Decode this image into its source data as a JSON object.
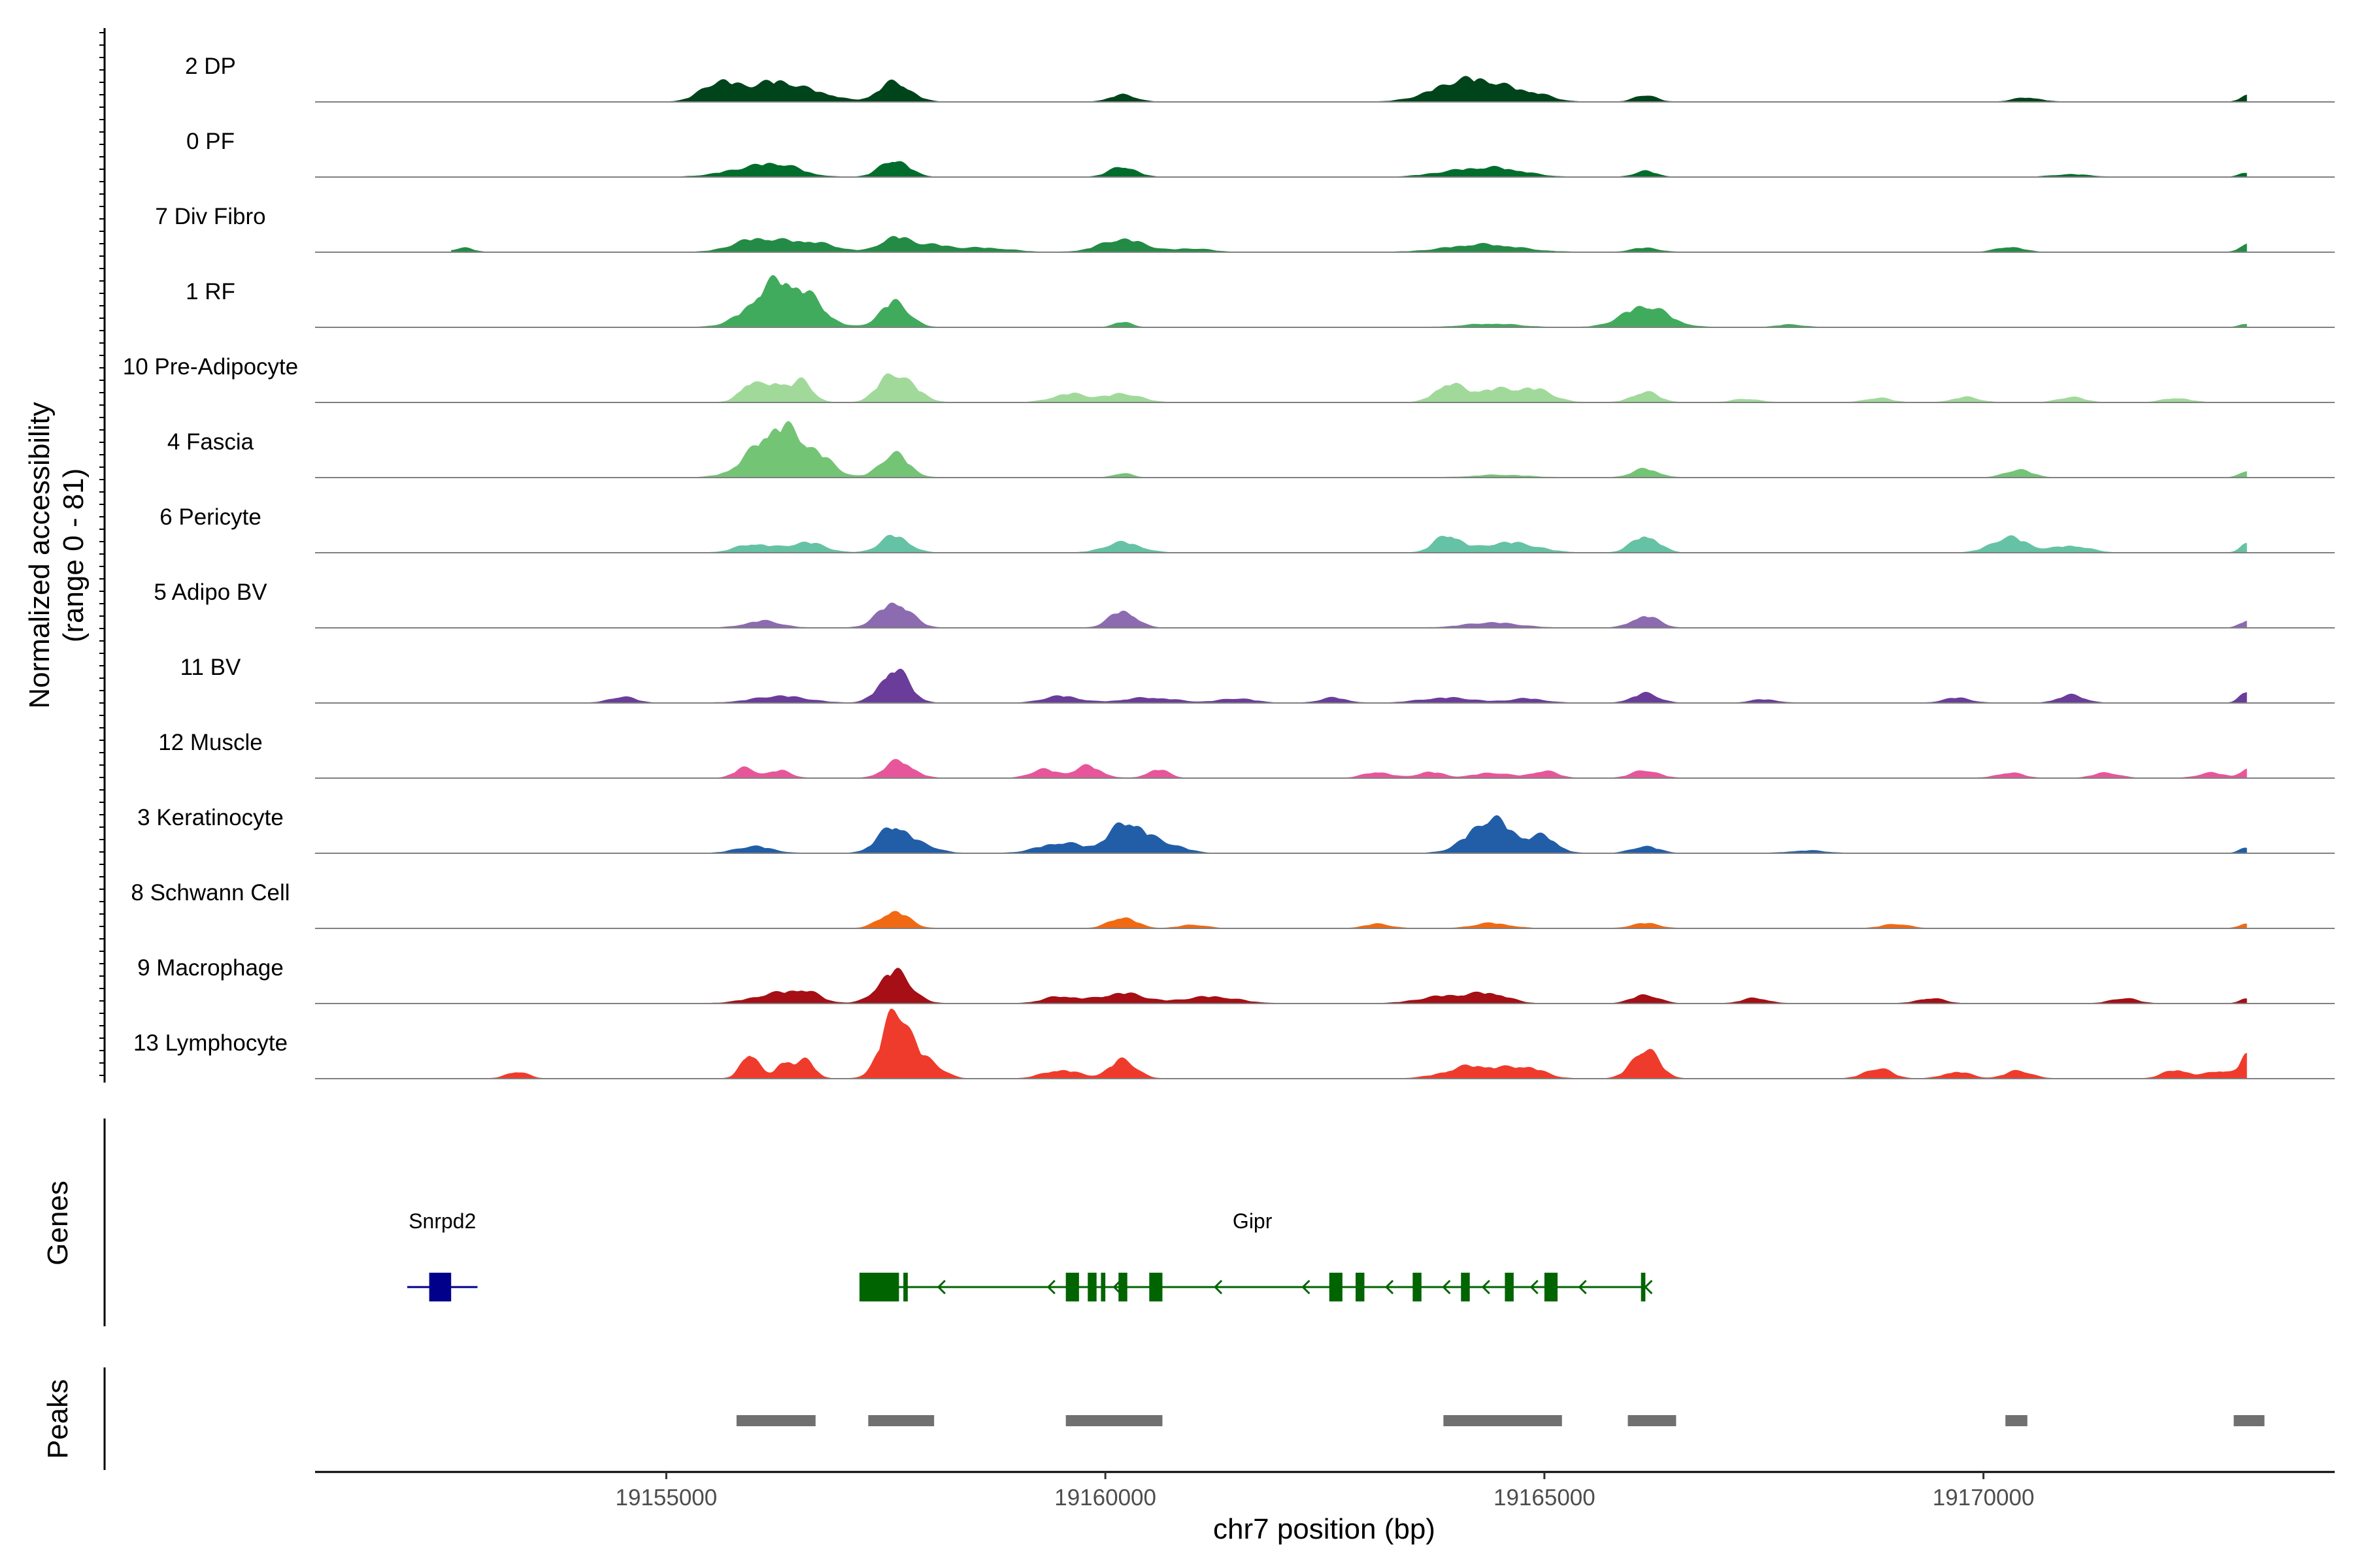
{
  "chart_data": {
    "type": "area",
    "title": "",
    "xlabel": "chr7 position (bp)",
    "ylabel": "Normalized accessibility\n(range 0 - 81)",
    "ylim": [
      0,
      81
    ],
    "xlim": [
      19151000,
      19174000
    ],
    "x_ticks": [
      19155000,
      19160000,
      19165000,
      19170000
    ],
    "x_tick_labels": [
      "19155000",
      "19160000",
      "19165000",
      "19170000"
    ],
    "panels": {
      "genes_label": "Genes",
      "peaks_label": "Peaks"
    },
    "series": [
      {
        "name": "2 DP",
        "color": "#00441b",
        "peaks": [
          [
            19155600,
            200,
            22
          ],
          [
            19156250,
            300,
            24
          ],
          [
            19156800,
            200,
            6
          ],
          [
            19157600,
            180,
            23
          ],
          [
            19160200,
            150,
            8
          ],
          [
            19163900,
            300,
            10
          ],
          [
            19164300,
            350,
            22
          ],
          [
            19164900,
            200,
            6
          ],
          [
            19166150,
            120,
            8
          ],
          [
            19170500,
            150,
            5
          ],
          [
            19173000,
            80,
            7
          ]
        ]
      },
      {
        "name": "0 PF",
        "color": "#006d2c",
        "peaks": [
          [
            19155900,
            300,
            8
          ],
          [
            19156300,
            250,
            12
          ],
          [
            19157600,
            160,
            20
          ],
          [
            19160200,
            150,
            12
          ],
          [
            19164000,
            300,
            6
          ],
          [
            19164500,
            300,
            9
          ],
          [
            19166150,
            120,
            7
          ],
          [
            19171000,
            200,
            3
          ],
          [
            19173000,
            80,
            5
          ]
        ]
      },
      {
        "name": "7 Div Fibro",
        "color": "#238b45",
        "peaks": [
          [
            19152300,
            120,
            6
          ],
          [
            19152700,
            100,
            5
          ],
          [
            19156000,
            250,
            14
          ],
          [
            19156600,
            300,
            12
          ],
          [
            19157600,
            160,
            17
          ],
          [
            19158000,
            200,
            8
          ],
          [
            19158600,
            300,
            5
          ],
          [
            19160200,
            250,
            15
          ],
          [
            19161000,
            200,
            4
          ],
          [
            19164300,
            400,
            9
          ],
          [
            19166150,
            150,
            5
          ],
          [
            19170300,
            150,
            6
          ],
          [
            19173000,
            80,
            10
          ]
        ]
      },
      {
        "name": "1 RF",
        "color": "#41ab5d",
        "peaks": [
          [
            19156300,
            300,
            55
          ],
          [
            19156700,
            150,
            10
          ],
          [
            19157600,
            160,
            30
          ],
          [
            19160200,
            100,
            6
          ],
          [
            19164400,
            300,
            4
          ],
          [
            19166150,
            250,
            25
          ],
          [
            19167800,
            150,
            3
          ],
          [
            19173000,
            80,
            4
          ]
        ]
      },
      {
        "name": "10 Pre-Adipocyte",
        "color": "#a1d99b",
        "peaks": [
          [
            19155950,
            120,
            22
          ],
          [
            19156250,
            120,
            22
          ],
          [
            19156550,
            120,
            24
          ],
          [
            19157550,
            150,
            30
          ],
          [
            19157800,
            150,
            14
          ],
          [
            19159600,
            200,
            10
          ],
          [
            19160200,
            200,
            10
          ],
          [
            19163900,
            150,
            20
          ],
          [
            19164400,
            250,
            15
          ],
          [
            19164900,
            200,
            14
          ],
          [
            19166150,
            150,
            12
          ],
          [
            19167300,
            150,
            4
          ],
          [
            19168800,
            150,
            5
          ],
          [
            19169800,
            150,
            6
          ],
          [
            19171000,
            150,
            6
          ],
          [
            19172200,
            150,
            5
          ]
        ]
      },
      {
        "name": "4 Fascia",
        "color": "#74c476",
        "peaks": [
          [
            19156300,
            300,
            60
          ],
          [
            19156800,
            150,
            10
          ],
          [
            19157600,
            160,
            28
          ],
          [
            19160200,
            100,
            5
          ],
          [
            19164500,
            300,
            3
          ],
          [
            19166150,
            150,
            10
          ],
          [
            19170400,
            150,
            9
          ],
          [
            19173000,
            80,
            8
          ]
        ]
      },
      {
        "name": "6 Pericyte",
        "color": "#66c2a4",
        "peaks": [
          [
            19156000,
            200,
            10
          ],
          [
            19156600,
            200,
            12
          ],
          [
            19157600,
            160,
            20
          ],
          [
            19160200,
            200,
            12
          ],
          [
            19163900,
            150,
            20
          ],
          [
            19164600,
            300,
            12
          ],
          [
            19166150,
            150,
            20
          ],
          [
            19170300,
            200,
            18
          ],
          [
            19171000,
            200,
            8
          ],
          [
            19173000,
            80,
            10
          ]
        ]
      },
      {
        "name": "5 Adipo BV",
        "color": "#8c6bb1",
        "peaks": [
          [
            19156100,
            200,
            8
          ],
          [
            19157600,
            180,
            30
          ],
          [
            19160200,
            150,
            20
          ],
          [
            19164400,
            300,
            6
          ],
          [
            19166150,
            150,
            14
          ],
          [
            19173000,
            80,
            8
          ]
        ]
      },
      {
        "name": "11 BV",
        "color": "#6a3d9a",
        "peaks": [
          [
            19154500,
            150,
            7
          ],
          [
            19156300,
            300,
            8
          ],
          [
            19157600,
            160,
            40
          ],
          [
            19159500,
            200,
            8
          ],
          [
            19160500,
            300,
            6
          ],
          [
            19161500,
            200,
            5
          ],
          [
            19162600,
            150,
            6
          ],
          [
            19163900,
            300,
            6
          ],
          [
            19164800,
            200,
            5
          ],
          [
            19166150,
            150,
            11
          ],
          [
            19167500,
            150,
            4
          ],
          [
            19169700,
            150,
            6
          ],
          [
            19171000,
            150,
            9
          ],
          [
            19173000,
            80,
            14
          ]
        ]
      },
      {
        "name": "12 Muscle",
        "color": "#e7569b",
        "peaks": [
          [
            19155900,
            120,
            12
          ],
          [
            19156300,
            120,
            9
          ],
          [
            19157650,
            160,
            20
          ],
          [
            19159300,
            150,
            10
          ],
          [
            19159800,
            150,
            14
          ],
          [
            19160600,
            120,
            10
          ],
          [
            19163100,
            150,
            7
          ],
          [
            19163700,
            150,
            7
          ],
          [
            19164400,
            200,
            6
          ],
          [
            19165000,
            150,
            8
          ],
          [
            19166150,
            150,
            9
          ],
          [
            19170300,
            150,
            6
          ],
          [
            19171400,
            150,
            6
          ],
          [
            19172600,
            150,
            6
          ],
          [
            19173000,
            80,
            10
          ]
        ]
      },
      {
        "name": "3 Keratinocyte",
        "color": "#225ea8",
        "peaks": [
          [
            19156000,
            200,
            8
          ],
          [
            19157600,
            180,
            32
          ],
          [
            19158000,
            150,
            6
          ],
          [
            19159500,
            250,
            12
          ],
          [
            19160250,
            200,
            36
          ],
          [
            19160700,
            200,
            10
          ],
          [
            19164400,
            250,
            40
          ],
          [
            19165000,
            150,
            18
          ],
          [
            19166150,
            150,
            8
          ],
          [
            19168000,
            200,
            3
          ],
          [
            19173000,
            80,
            6
          ]
        ]
      },
      {
        "name": "8 Schwann Cell",
        "color": "#f16913",
        "peaks": [
          [
            19157600,
            160,
            20
          ],
          [
            19160200,
            150,
            13
          ],
          [
            19161000,
            150,
            4
          ],
          [
            19163100,
            150,
            5
          ],
          [
            19164400,
            200,
            6
          ],
          [
            19166150,
            150,
            6
          ],
          [
            19169000,
            150,
            5
          ],
          [
            19173000,
            80,
            6
          ]
        ]
      },
      {
        "name": "9 Macrophage",
        "color": "#a50f15",
        "peaks": [
          [
            19156300,
            300,
            12
          ],
          [
            19156600,
            150,
            8
          ],
          [
            19157600,
            180,
            38
          ],
          [
            19159500,
            200,
            8
          ],
          [
            19160200,
            250,
            12
          ],
          [
            19161200,
            300,
            8
          ],
          [
            19163900,
            300,
            9
          ],
          [
            19164400,
            200,
            10
          ],
          [
            19166150,
            150,
            10
          ],
          [
            19167400,
            150,
            6
          ],
          [
            19169400,
            150,
            6
          ],
          [
            19171600,
            150,
            6
          ],
          [
            19173000,
            80,
            6
          ]
        ]
      },
      {
        "name": "13 Lymphocyte",
        "color": "#ef3b2c",
        "peaks": [
          [
            19153300,
            120,
            8
          ],
          [
            19155950,
            100,
            30
          ],
          [
            19156350,
            100,
            20
          ],
          [
            19156600,
            100,
            20
          ],
          [
            19157620,
            160,
            81
          ],
          [
            19158000,
            150,
            18
          ],
          [
            19159500,
            200,
            10
          ],
          [
            19160200,
            150,
            22
          ],
          [
            19164200,
            300,
            15
          ],
          [
            19164800,
            200,
            12
          ],
          [
            19166150,
            150,
            35
          ],
          [
            19168800,
            150,
            12
          ],
          [
            19169700,
            150,
            8
          ],
          [
            19170400,
            150,
            9
          ],
          [
            19172200,
            150,
            10
          ],
          [
            19172700,
            150,
            9
          ],
          [
            19173000,
            80,
            25
          ]
        ]
      }
    ],
    "genes": [
      {
        "name": "Snrpd2",
        "color": "#00008b",
        "strand": "+",
        "start": 19152050,
        "end": 19152850,
        "exons": [
          [
            19152300,
            19152550
          ]
        ],
        "arrows": []
      },
      {
        "name": "Gipr",
        "color": "#006400",
        "strand": "-",
        "start": 19157200,
        "end": 19166150,
        "exons": [
          [
            19157200,
            19157650
          ],
          [
            19157700,
            19157750
          ],
          [
            19159550,
            19159700
          ],
          [
            19159800,
            19159900
          ],
          [
            19159950,
            19160000
          ],
          [
            19160150,
            19160250
          ],
          [
            19160500,
            19160650
          ],
          [
            19162550,
            19162700
          ],
          [
            19162850,
            19162950
          ],
          [
            19163500,
            19163600
          ],
          [
            19164050,
            19164150
          ],
          [
            19164550,
            19164650
          ],
          [
            19165000,
            19165150
          ],
          [
            19166100,
            19166150
          ]
        ],
        "arrows": [
          19158100,
          19159350,
          19160100,
          19161250,
          19162250,
          19163200,
          19163850,
          19164300,
          19164850,
          19165400,
          19166150
        ]
      }
    ],
    "peak_regions": [
      [
        19155800,
        19156700
      ],
      [
        19157300,
        19158050
      ],
      [
        19159550,
        19160650
      ],
      [
        19163850,
        19165200
      ],
      [
        19165950,
        19166500
      ],
      [
        19170250,
        19170500
      ],
      [
        19172850,
        19173200
      ]
    ]
  }
}
